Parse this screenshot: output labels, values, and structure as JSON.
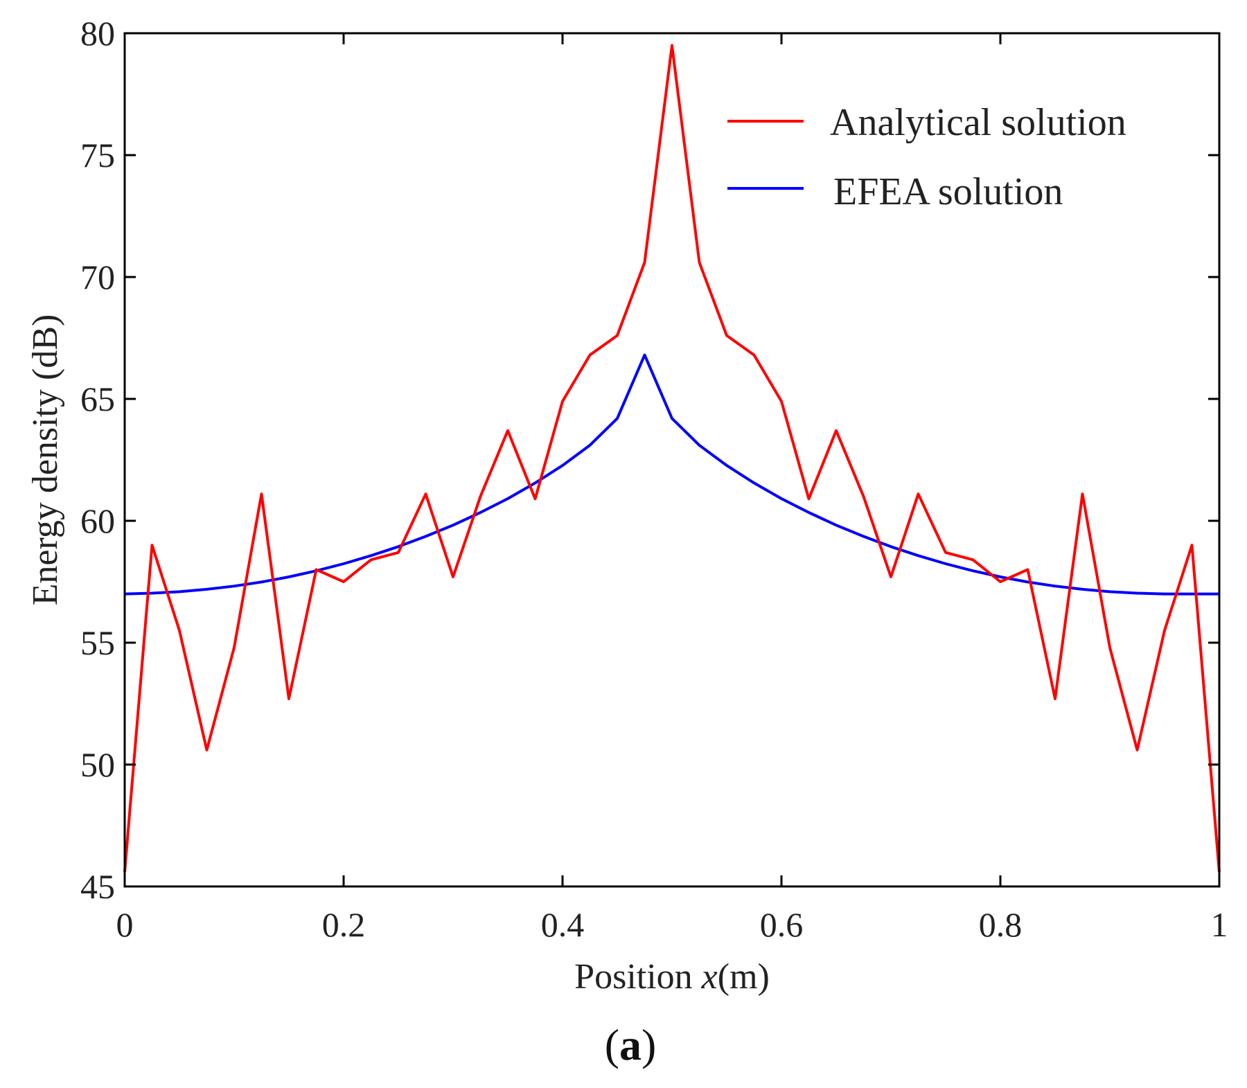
{
  "chart_data": {
    "type": "line",
    "title": "",
    "xlabel_prefix": "Position ",
    "xlabel_var": "x",
    "xlabel_unit": "(m)",
    "ylabel": "Energy density (dB)",
    "caption_open": "(",
    "caption_letter": "a",
    "caption_close": ")",
    "xlim": [
      0,
      1
    ],
    "ylim": [
      45,
      80
    ],
    "x_ticks": [
      0,
      0.2,
      0.4,
      0.6,
      0.8,
      1
    ],
    "x_tick_labels": [
      "0",
      "0.2",
      "0.4",
      "0.6",
      "0.8",
      "1"
    ],
    "y_ticks": [
      45,
      50,
      55,
      60,
      65,
      70,
      75,
      80
    ],
    "y_tick_labels": [
      "45",
      "50",
      "55",
      "60",
      "65",
      "70",
      "75",
      "80"
    ],
    "grid": false,
    "legend_position": "top-right",
    "series": [
      {
        "name": "Analytical solution",
        "color": "#ff0000",
        "x": [
          0,
          0.025,
          0.05,
          0.075,
          0.1,
          0.125,
          0.15,
          0.175,
          0.2,
          0.225,
          0.25,
          0.275,
          0.3,
          0.325,
          0.35,
          0.375,
          0.4,
          0.425,
          0.45,
          0.475,
          0.5,
          0.525,
          0.55,
          0.575,
          0.6,
          0.625,
          0.65,
          0.675,
          0.7,
          0.725,
          0.75,
          0.775,
          0.8,
          0.825,
          0.85,
          0.875,
          0.9,
          0.925,
          0.95,
          0.975,
          1
        ],
        "values": [
          45.6,
          59.0,
          55.5,
          50.6,
          54.8,
          61.1,
          52.7,
          58.0,
          57.5,
          58.4,
          58.7,
          61.1,
          57.7,
          61.0,
          63.7,
          60.9,
          64.9,
          66.8,
          67.6,
          70.6,
          79.5,
          70.6,
          67.6,
          66.8,
          64.9,
          60.9,
          63.7,
          61.0,
          57.7,
          61.1,
          58.7,
          58.4,
          57.5,
          58.0,
          52.7,
          61.1,
          54.8,
          50.6,
          55.5,
          59.0,
          45.6
        ]
      },
      {
        "name": "EFEA solution",
        "color": "#0000ff",
        "x": [
          0,
          0.025,
          0.05,
          0.075,
          0.1,
          0.125,
          0.15,
          0.175,
          0.2,
          0.225,
          0.25,
          0.275,
          0.3,
          0.325,
          0.35,
          0.375,
          0.4,
          0.425,
          0.45,
          0.475,
          0.5,
          0.525,
          0.55,
          0.575,
          0.6,
          0.625,
          0.65,
          0.675,
          0.7,
          0.725,
          0.75,
          0.775,
          0.8,
          0.825,
          0.85,
          0.875,
          0.9,
          0.925,
          0.95,
          0.975,
          1
        ],
        "values": [
          57.0,
          57.03,
          57.09,
          57.19,
          57.32,
          57.49,
          57.7,
          57.95,
          58.24,
          58.57,
          58.94,
          59.36,
          59.82,
          60.34,
          60.91,
          61.55,
          62.27,
          63.1,
          64.2,
          66.8,
          64.2,
          63.1,
          62.27,
          61.55,
          60.91,
          60.34,
          59.82,
          59.36,
          58.94,
          58.57,
          58.24,
          57.95,
          57.7,
          57.49,
          57.32,
          57.19,
          57.09,
          57.03,
          57.0,
          57.0,
          57.0
        ]
      }
    ]
  }
}
